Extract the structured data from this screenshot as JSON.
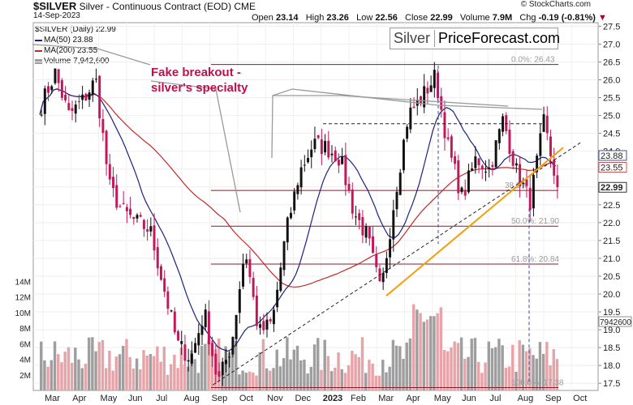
{
  "header": {
    "symbol": "$SILVER",
    "name": "Silver - Continuous Contract (EOD)",
    "exchange": "CME",
    "date": "14-Sep-2023",
    "credit": "© StockCharts.com",
    "ohlc": [
      {
        "label": "Open",
        "value": "23.14"
      },
      {
        "label": "High",
        "value": "23.26"
      },
      {
        "label": "Low",
        "value": "22.56"
      },
      {
        "label": "Close",
        "value": "22.99"
      },
      {
        "label": "Volume",
        "value": "7.9M"
      },
      {
        "label": "Chg",
        "value": "-0.19 (-0.81%)",
        "marker": "▼"
      }
    ]
  },
  "legend": [
    {
      "text": "$SILVER (Daily) 22.99",
      "color": "#111111"
    },
    {
      "text": "MA(50) 23.88",
      "color": "#1a237e"
    },
    {
      "text": "MA(200) 23.55",
      "color": "#c62828"
    },
    {
      "text": "Volume 7,942,600",
      "color": "#9e9e9e"
    }
  ],
  "brand": {
    "left": "Silver",
    "right": "PriceForecast.com"
  },
  "annotation": {
    "line1": "Fake breakout -",
    "line2": "silver's specialty"
  },
  "colors": {
    "up": "#111111",
    "down": "#c2185b",
    "ma50": "#1a237e",
    "ma200": "#c62828",
    "trend": "#f59e0b",
    "fib": "#8b1a2b",
    "vol_up": "#9e9e9e",
    "vol_down": "#e6a3a8"
  },
  "chart_data": {
    "type": "candlestick",
    "title": "$SILVER Silver - Continuous Contract (EOD) CME",
    "x_labels": [
      "Mar",
      "Apr",
      "May",
      "Jun",
      "Jul",
      "Aug",
      "Sep",
      "Oct",
      "Nov",
      "Dec",
      "2023",
      "Feb",
      "Mar",
      "Apr",
      "May",
      "Jun",
      "Jul",
      "Aug",
      "Sep",
      "Oct"
    ],
    "price_axis": {
      "ticks": [
        "27.5",
        "27.0",
        "26.5",
        "26.0",
        "25.5",
        "25.0",
        "24.5",
        "24.0",
        "23.5",
        "23.0",
        "22.5",
        "22.0",
        "21.5",
        "21.0",
        "20.5",
        "20.0",
        "19.5",
        "19.0",
        "18.5",
        "18.0",
        "17.5"
      ],
      "range": [
        17.3,
        27.6
      ]
    },
    "volume_axis": {
      "ticks": [
        "14M",
        "12M",
        "10M",
        "8M",
        "6M",
        "4M",
        "2M"
      ]
    },
    "price_path": [
      [
        "Mar",
        25.3
      ],
      [
        "Mar",
        26.2
      ],
      [
        "Mar",
        25.0
      ],
      [
        "Apr",
        25.4
      ],
      [
        "Apr",
        26.0
      ],
      [
        "May",
        23.0
      ],
      [
        "May",
        22.3
      ],
      [
        "Jun",
        22.0
      ],
      [
        "Jun",
        21.8
      ],
      [
        "Jul",
        20.2
      ],
      [
        "Jul",
        18.6
      ],
      [
        "Aug",
        18.2
      ],
      [
        "Aug",
        19.5
      ],
      [
        "Sep",
        17.5
      ],
      [
        "Sep",
        18.6
      ],
      [
        "Oct",
        21.3
      ],
      [
        "Oct",
        18.9
      ],
      [
        "Nov",
        19.2
      ],
      [
        "Nov",
        21.7
      ],
      [
        "Dec",
        23.4
      ],
      [
        "Dec",
        24.2
      ],
      [
        "2023",
        24.1
      ],
      [
        "2023",
        23.8
      ],
      [
        "Feb",
        22.3
      ],
      [
        "Feb",
        21.6
      ],
      [
        "Mar",
        20.0
      ],
      [
        "Mar",
        22.7
      ],
      [
        "Apr",
        25.0
      ],
      [
        "Apr",
        25.5
      ],
      [
        "May",
        26.1
      ],
      [
        "May",
        24.0
      ],
      [
        "Jun",
        22.7
      ],
      [
        "Jun",
        23.8
      ],
      [
        "Jul",
        23.5
      ],
      [
        "Jul",
        24.9
      ],
      [
        "Aug",
        23.4
      ],
      [
        "Aug",
        22.6
      ],
      [
        "Sep",
        24.8
      ],
      [
        "Sep",
        23.0
      ]
    ],
    "ma50_last": 23.88,
    "ma200_last": 23.55,
    "last_price": 22.99,
    "last_volume": "7942600",
    "fib_levels": [
      {
        "label": "0.0%: 26.43",
        "value": 26.43
      },
      {
        "label": "38.2%",
        "value": 22.9
      },
      {
        "label": "50.0%: 21.90",
        "value": 21.9
      },
      {
        "label": "61.8%: 20.84",
        "value": 20.84
      },
      {
        "label": "100.0%: 17.38",
        "value": 17.38
      }
    ],
    "resistance_level": 24.77,
    "price_labels": {
      "ma50": "23.88",
      "ma200": "23.55",
      "close": "22.99",
      "volume": "7942600",
      "fib382_tail": "22.9"
    }
  }
}
